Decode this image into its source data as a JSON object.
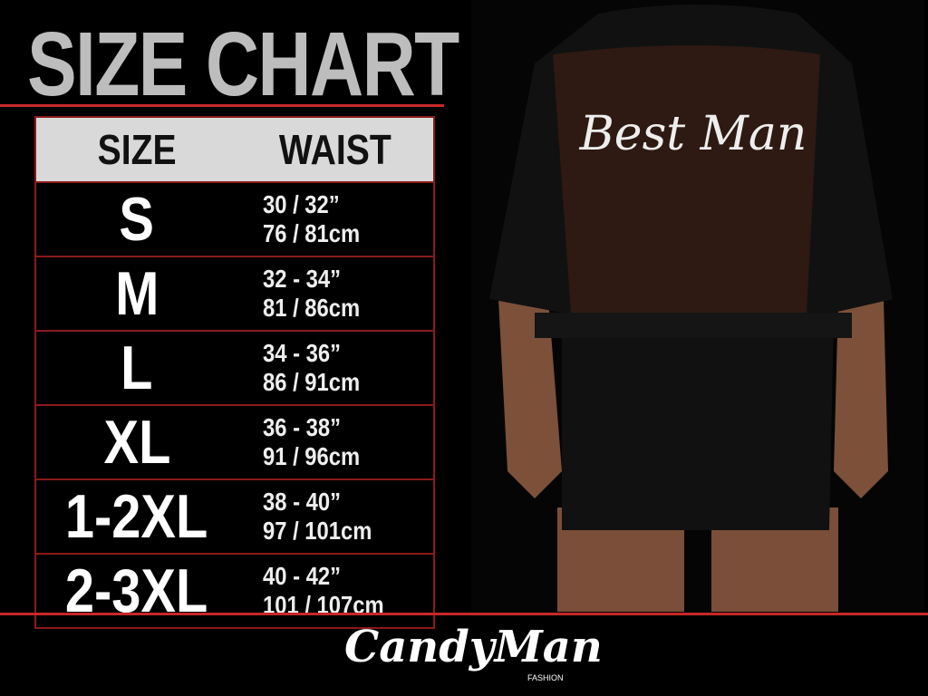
{
  "header": {
    "title": "SIZE CHART"
  },
  "table": {
    "columns": [
      "SIZE",
      "WAIST"
    ],
    "rows": [
      [
        "S",
        "30 / 32”",
        "76 / 81cm"
      ],
      [
        "M",
        "32 - 34”",
        "81 / 86cm"
      ],
      [
        "L",
        "34 - 36”",
        "86 / 91cm"
      ],
      [
        "XL",
        "36 - 38”",
        "91 / 96cm"
      ],
      [
        "1-2XL",
        "38 - 40”",
        "97 / 101cm"
      ],
      [
        "2-3XL",
        "40 - 42”",
        "101 / 107cm"
      ]
    ]
  },
  "garment_print": "Best Man",
  "brand": {
    "name": "CandyMan",
    "tagline": "FASHION"
  }
}
